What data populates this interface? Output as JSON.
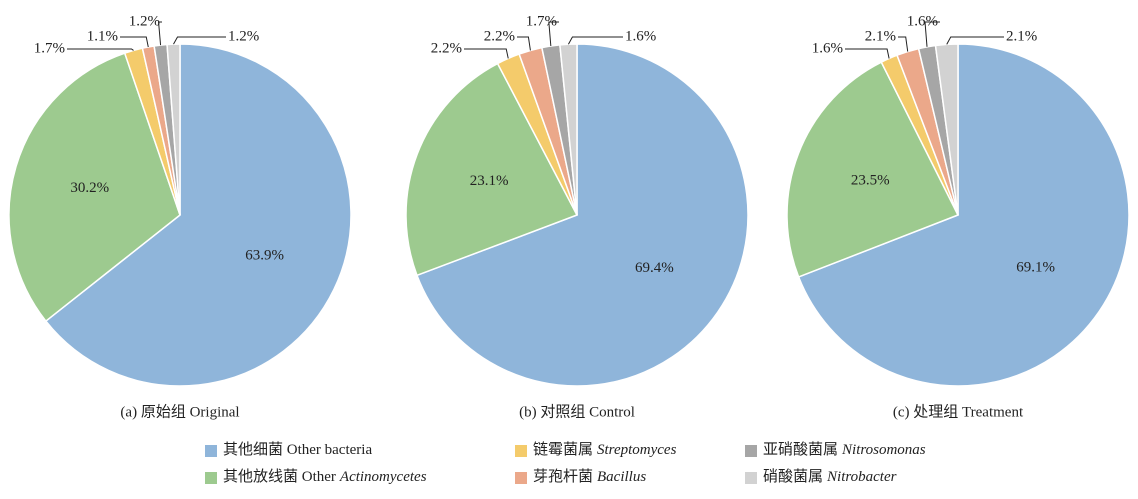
{
  "chart_data": [
    {
      "type": "pie",
      "title": "(a) 原始组 Original",
      "values": [
        63.9,
        30.2,
        1.7,
        1.1,
        1.2,
        1.2
      ],
      "value_labels": [
        "63.9%",
        "30.2%",
        "1.7%",
        "1.1%",
        "1.2%",
        "1.2%"
      ]
    },
    {
      "type": "pie",
      "title": "(b) 对照组 Control",
      "values": [
        69.4,
        23.1,
        2.2,
        2.2,
        1.7,
        1.6
      ],
      "value_labels": [
        "69.4%",
        "23.1%",
        "2.2%",
        "2.2%",
        "1.7%",
        "1.6%"
      ]
    },
    {
      "type": "pie",
      "title": "(c) 处理组 Treatment",
      "values": [
        69.1,
        23.5,
        1.6,
        2.1,
        1.6,
        2.1
      ],
      "value_labels": [
        "69.1%",
        "23.5%",
        "1.6%",
        "2.1%",
        "1.6%",
        "2.1%"
      ]
    }
  ],
  "legend": {
    "items": [
      {
        "text": "其他细菌 Other bacteria",
        "color": "#8fb5da"
      },
      {
        "text": "其他放线菌 Other",
        "italic": "Actinomycetes",
        "color": "#9dca8f"
      },
      {
        "text": "链霉菌属",
        "italic": "Streptomyces",
        "color": "#f4cb6b"
      },
      {
        "text": "芽孢杆菌",
        "italic": "Bacillus",
        "color": "#eba88a"
      },
      {
        "text": "亚硝酸菌属",
        "italic": "Nitrosomonas",
        "color": "#a6a6a6"
      },
      {
        "text": "硝酸菌属",
        "italic": "Nitrobacter",
        "color": "#d2d2d2"
      }
    ]
  }
}
